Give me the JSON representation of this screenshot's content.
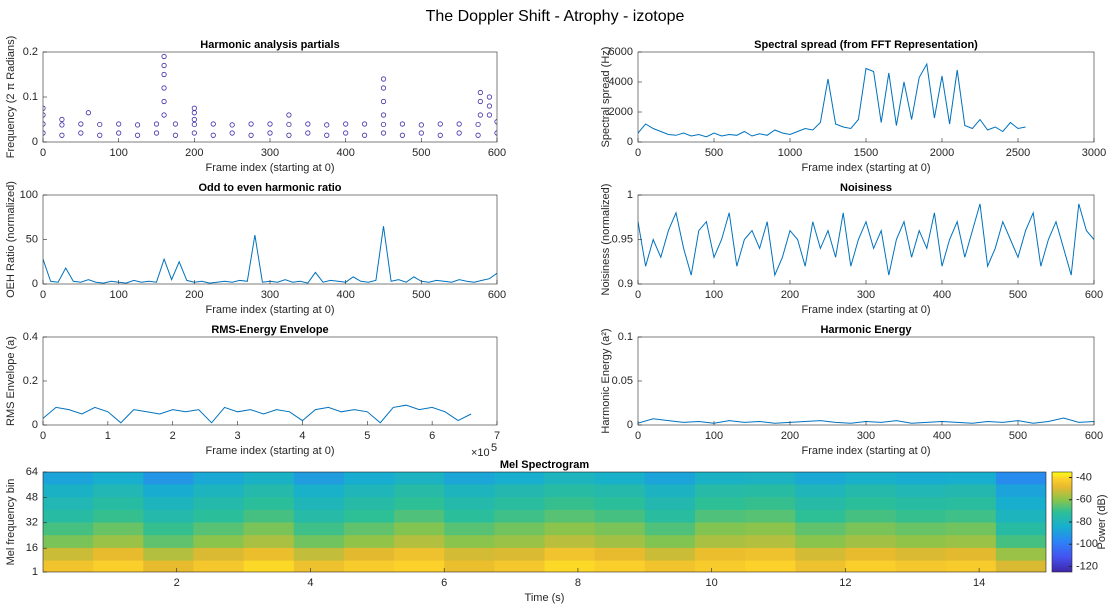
{
  "title": "The Doppler Shift - Atrophy - izotope",
  "chart_data": [
    {
      "type": "scatter",
      "title": "Harmonic analysis partials",
      "xlabel": "Frame index (starting at 0)",
      "ylabel": "Frequency (2 π Radians)",
      "color": "#3d2fa8",
      "xlim": [
        0,
        600
      ],
      "xticks": [
        0,
        100,
        200,
        300,
        400,
        500,
        600
      ],
      "ylim": [
        0,
        0.2
      ],
      "yticks": [
        0,
        0.1,
        0.2
      ],
      "x": [
        0,
        25,
        50,
        75,
        100,
        125,
        150,
        175,
        200,
        225,
        250,
        275,
        300,
        325,
        350,
        375,
        400,
        425,
        450,
        475,
        500,
        525,
        550,
        575,
        600,
        0,
        25,
        50,
        75,
        100,
        125,
        150,
        175,
        200,
        225,
        250,
        275,
        300,
        325,
        350,
        375,
        400,
        425,
        450,
        475,
        500,
        525,
        550,
        575,
        600,
        0,
        0,
        25,
        60,
        160,
        160,
        160,
        160,
        160,
        160,
        200,
        200,
        200,
        325,
        450,
        450,
        450,
        450,
        578,
        578,
        578,
        590,
        590,
        590
      ],
      "values": [
        0.04,
        0.038,
        0.04,
        0.039,
        0.04,
        0.038,
        0.04,
        0.04,
        0.039,
        0.04,
        0.038,
        0.04,
        0.04,
        0.039,
        0.04,
        0.038,
        0.04,
        0.04,
        0.039,
        0.04,
        0.038,
        0.04,
        0.04,
        0.039,
        0.045,
        0.02,
        0.015,
        0.02,
        0.015,
        0.02,
        0.015,
        0.02,
        0.015,
        0.02,
        0.015,
        0.02,
        0.015,
        0.02,
        0.015,
        0.02,
        0.015,
        0.02,
        0.015,
        0.02,
        0.015,
        0.02,
        0.015,
        0.02,
        0.015,
        0.02,
        0.06,
        0.075,
        0.05,
        0.065,
        0.06,
        0.09,
        0.12,
        0.15,
        0.17,
        0.19,
        0.05,
        0.065,
        0.075,
        0.06,
        0.06,
        0.09,
        0.12,
        0.14,
        0.06,
        0.09,
        0.11,
        0.06,
        0.08,
        0.1
      ]
    },
    {
      "type": "line",
      "title": "Spectral spread (from FFT Representation)",
      "xlabel": "Frame index (starting at 0)",
      "ylabel": "Spectral spread (Hz)",
      "color": "#0072bd",
      "xlim": [
        0,
        3000
      ],
      "xticks": [
        0,
        500,
        1000,
        1500,
        2000,
        2500,
        3000
      ],
      "ylim": [
        0,
        6000
      ],
      "yticks": [
        0,
        2000,
        4000,
        6000
      ],
      "x": [
        0,
        50,
        100,
        150,
        200,
        250,
        300,
        350,
        400,
        450,
        500,
        550,
        600,
        650,
        700,
        750,
        800,
        850,
        900,
        950,
        1000,
        1050,
        1100,
        1150,
        1200,
        1250,
        1300,
        1350,
        1400,
        1450,
        1500,
        1550,
        1600,
        1650,
        1700,
        1750,
        1800,
        1850,
        1900,
        1950,
        2000,
        2050,
        2100,
        2150,
        2200,
        2250,
        2300,
        2350,
        2400,
        2450,
        2500,
        2550
      ],
      "values": [
        600,
        1200,
        900,
        700,
        500,
        450,
        600,
        400,
        500,
        350,
        600,
        400,
        500,
        450,
        700,
        400,
        550,
        450,
        800,
        600,
        500,
        700,
        900,
        800,
        1300,
        4200,
        1200,
        1000,
        900,
        1500,
        4900,
        4700,
        1300,
        4600,
        1100,
        4000,
        1500,
        4300,
        5200,
        1600,
        4400,
        1200,
        4800,
        1100,
        900,
        1500,
        800,
        1000,
        700,
        1300,
        900,
        1000
      ]
    },
    {
      "type": "line",
      "title": "Odd to even harmonic ratio",
      "xlabel": "Frame index (starting at 0)",
      "ylabel": "OEH Ratio (normalized)",
      "color": "#0072bd",
      "xlim": [
        0,
        600
      ],
      "xticks": [
        0,
        100,
        200,
        300,
        400,
        500,
        600
      ],
      "ylim": [
        0,
        100
      ],
      "yticks": [
        0,
        50,
        100
      ],
      "x": [
        0,
        10,
        20,
        30,
        40,
        50,
        60,
        70,
        80,
        90,
        100,
        110,
        120,
        130,
        140,
        150,
        160,
        170,
        180,
        190,
        200,
        210,
        220,
        230,
        240,
        250,
        260,
        270,
        280,
        290,
        300,
        310,
        320,
        330,
        340,
        350,
        360,
        370,
        380,
        390,
        400,
        410,
        420,
        430,
        440,
        450,
        460,
        470,
        480,
        490,
        500,
        510,
        520,
        530,
        540,
        550,
        560,
        570,
        580,
        590,
        600
      ],
      "values": [
        28,
        3,
        2,
        18,
        3,
        2,
        5,
        2,
        1,
        3,
        2,
        1,
        4,
        2,
        3,
        2,
        28,
        5,
        25,
        4,
        2,
        3,
        1,
        2,
        3,
        2,
        4,
        3,
        55,
        2,
        3,
        2,
        5,
        2,
        3,
        1,
        13,
        2,
        4,
        3,
        2,
        8,
        3,
        2,
        4,
        65,
        3,
        5,
        2,
        8,
        3,
        2,
        4,
        3,
        2,
        5,
        3,
        2,
        4,
        6,
        12
      ]
    },
    {
      "type": "line",
      "title": "Noisiness",
      "xlabel": "Frame index (starting at 0)",
      "ylabel": "Noisiness (normalized)",
      "color": "#0072bd",
      "xlim": [
        0,
        600
      ],
      "xticks": [
        0,
        100,
        200,
        300,
        400,
        500,
        600
      ],
      "ylim": [
        0.9,
        1
      ],
      "yticks": [
        0.9,
        0.95,
        1
      ],
      "x": [
        0,
        10,
        20,
        30,
        40,
        50,
        60,
        70,
        80,
        90,
        100,
        110,
        120,
        130,
        140,
        150,
        160,
        170,
        180,
        190,
        200,
        210,
        220,
        230,
        240,
        250,
        260,
        270,
        280,
        290,
        300,
        310,
        320,
        330,
        340,
        350,
        360,
        370,
        380,
        390,
        400,
        410,
        420,
        430,
        440,
        450,
        460,
        470,
        480,
        490,
        500,
        510,
        520,
        530,
        540,
        550,
        560,
        570,
        580,
        590,
        600
      ],
      "values": [
        0.97,
        0.92,
        0.95,
        0.93,
        0.96,
        0.98,
        0.94,
        0.91,
        0.96,
        0.97,
        0.93,
        0.95,
        0.98,
        0.92,
        0.95,
        0.96,
        0.94,
        0.97,
        0.91,
        0.93,
        0.96,
        0.95,
        0.92,
        0.97,
        0.94,
        0.96,
        0.93,
        0.98,
        0.92,
        0.95,
        0.97,
        0.94,
        0.96,
        0.91,
        0.95,
        0.97,
        0.93,
        0.96,
        0.94,
        0.98,
        0.92,
        0.95,
        0.97,
        0.93,
        0.96,
        0.99,
        0.92,
        0.94,
        0.97,
        0.95,
        0.93,
        0.96,
        0.98,
        0.92,
        0.95,
        0.97,
        0.94,
        0.91,
        0.99,
        0.96,
        0.95
      ]
    },
    {
      "type": "line",
      "title": "RMS-Energy Envelope",
      "xlabel": "Frame index (starting at 0)",
      "ylabel": "RMS Envelope (a)",
      "color": "#0072bd",
      "x_exponent_base": "×10",
      "x_exponent": "5",
      "xlim": [
        0,
        700000
      ],
      "xticks": [
        0,
        {
          "value": 100000,
          "label": "1"
        },
        {
          "value": 200000,
          "label": "2"
        },
        {
          "value": 300000,
          "label": "3"
        },
        {
          "value": 400000,
          "label": "4"
        },
        {
          "value": 500000,
          "label": "5"
        },
        {
          "value": 600000,
          "label": "6"
        },
        {
          "value": 700000,
          "label": "7"
        }
      ],
      "ylim": [
        0,
        0.4
      ],
      "yticks": [
        0,
        0.2,
        0.4
      ],
      "x": [
        0,
        20000,
        40000,
        60000,
        80000,
        100000,
        120000,
        140000,
        160000,
        180000,
        200000,
        220000,
        240000,
        260000,
        280000,
        300000,
        320000,
        340000,
        360000,
        380000,
        400000,
        420000,
        440000,
        460000,
        480000,
        500000,
        520000,
        540000,
        560000,
        580000,
        600000,
        620000,
        640000,
        660000
      ],
      "values": [
        0.03,
        0.08,
        0.07,
        0.05,
        0.08,
        0.06,
        0.01,
        0.07,
        0.06,
        0.05,
        0.07,
        0.06,
        0.07,
        0.01,
        0.08,
        0.06,
        0.07,
        0.05,
        0.07,
        0.06,
        0.02,
        0.07,
        0.08,
        0.06,
        0.07,
        0.06,
        0.01,
        0.08,
        0.09,
        0.07,
        0.08,
        0.06,
        0.02,
        0.05
      ]
    },
    {
      "type": "line",
      "title": "Harmonic Energy",
      "xlabel": "Frame index (starting at 0)",
      "ylabel": "Harmonic Energy (a²)",
      "color": "#0072bd",
      "xlim": [
        0,
        600
      ],
      "xticks": [
        0,
        100,
        200,
        300,
        400,
        500,
        600
      ],
      "ylim": [
        0,
        0.1
      ],
      "yticks": [
        0,
        0.05,
        0.1
      ],
      "x": [
        0,
        20,
        40,
        60,
        80,
        100,
        120,
        140,
        160,
        180,
        200,
        220,
        240,
        260,
        280,
        300,
        320,
        340,
        360,
        380,
        400,
        420,
        440,
        460,
        480,
        500,
        520,
        540,
        560,
        580,
        600
      ],
      "values": [
        0.002,
        0.007,
        0.005,
        0.003,
        0.004,
        0.002,
        0.005,
        0.003,
        0.004,
        0.002,
        0.003,
        0.004,
        0.005,
        0.003,
        0.002,
        0.004,
        0.003,
        0.005,
        0.002,
        0.003,
        0.004,
        0.003,
        0.002,
        0.004,
        0.003,
        0.005,
        0.002,
        0.004,
        0.008,
        0.003,
        0.004
      ]
    },
    {
      "type": "heatmap",
      "title": "Mel Spectrogram",
      "xlabel": "Time (s)",
      "ylabel": "Mel frequency bin",
      "colormap": "parula",
      "xlim": [
        0,
        15
      ],
      "xticks": [
        2,
        4,
        6,
        8,
        10,
        12,
        14
      ],
      "ylim": [
        1,
        64
      ],
      "yticks": [
        1,
        16,
        32,
        48,
        64
      ],
      "clim": [
        -125,
        -35
      ],
      "colorbar_ticks": [
        -40,
        -60,
        -80,
        -100,
        -120
      ],
      "colorbar_label": "Power (dB)",
      "x": [
        0.375,
        1.125,
        1.875,
        2.625,
        3.375,
        4.125,
        4.875,
        5.625,
        6.375,
        7.125,
        7.875,
        8.625,
        9.375,
        10.125,
        10.875,
        11.625,
        12.375,
        13.125,
        13.875,
        14.625
      ],
      "y": [
        4.5,
        12.5,
        20.5,
        28.5,
        36.5,
        44.5,
        52.5,
        60.5
      ],
      "values": [
        [
          -45,
          -42,
          -48,
          -44,
          -40,
          -46,
          -43,
          -41,
          -47,
          -44,
          -40,
          -42,
          -45,
          -43,
          -41,
          -46,
          -42,
          -44,
          -43,
          -50
        ],
        [
          -52,
          -48,
          -55,
          -50,
          -47,
          -53,
          -49,
          -46,
          -51,
          -50,
          -45,
          -48,
          -52,
          -47,
          -46,
          -51,
          -48,
          -50,
          -49,
          -58
        ],
        [
          -62,
          -58,
          -65,
          -60,
          -56,
          -63,
          -59,
          -55,
          -60,
          -58,
          -54,
          -57,
          -61,
          -56,
          -55,
          -60,
          -57,
          -59,
          -58,
          -68
        ],
        [
          -68,
          -64,
          -70,
          -66,
          -62,
          -69,
          -65,
          -61,
          -66,
          -63,
          -60,
          -62,
          -67,
          -61,
          -60,
          -65,
          -62,
          -64,
          -63,
          -74
        ],
        [
          -74,
          -70,
          -76,
          -72,
          -68,
          -75,
          -71,
          -67,
          -72,
          -69,
          -66,
          -68,
          -73,
          -67,
          -66,
          -71,
          -68,
          -70,
          -69,
          -80
        ],
        [
          -78,
          -74,
          -80,
          -76,
          -72,
          -79,
          -75,
          -71,
          -76,
          -73,
          -70,
          -72,
          -77,
          -71,
          -70,
          -75,
          -72,
          -74,
          -73,
          -84
        ],
        [
          -82,
          -78,
          -85,
          -80,
          -76,
          -83,
          -79,
          -75,
          -80,
          -77,
          -74,
          -76,
          -81,
          -75,
          -74,
          -79,
          -76,
          -78,
          -77,
          -88
        ],
        [
          -88,
          -84,
          -92,
          -86,
          -82,
          -90,
          -85,
          -81,
          -87,
          -84,
          -80,
          -83,
          -88,
          -82,
          -81,
          -86,
          -83,
          -85,
          -84,
          -95
        ]
      ]
    }
  ]
}
